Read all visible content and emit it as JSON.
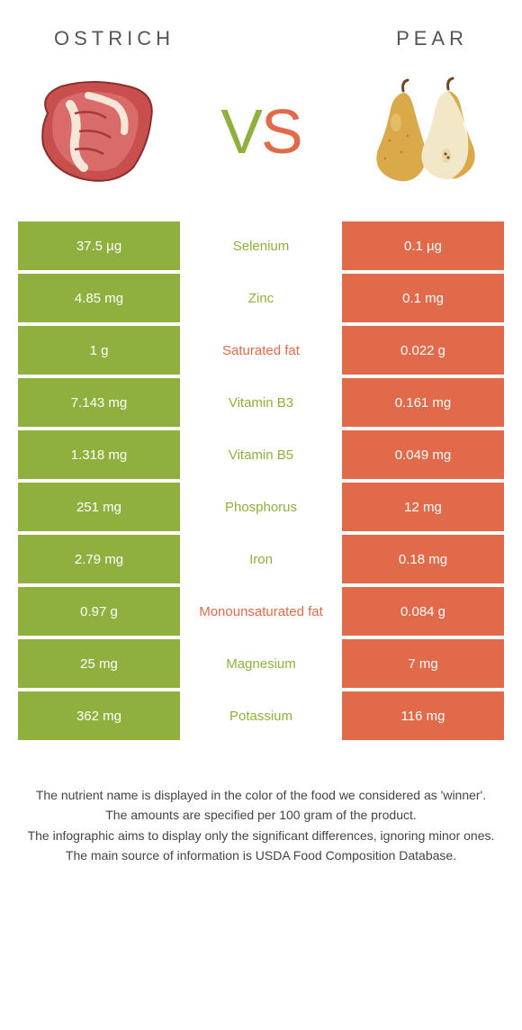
{
  "header": {
    "left": "Ostrich",
    "right": "Pear"
  },
  "vs": {
    "v": "V",
    "s": "S"
  },
  "colors": {
    "green": "#8fb03e",
    "orange": "#e06a4a"
  },
  "rows": [
    {
      "left": "37.5 µg",
      "label": "Selenium",
      "right": "0.1 µg",
      "winner": "green"
    },
    {
      "left": "4.85 mg",
      "label": "Zinc",
      "right": "0.1 mg",
      "winner": "green"
    },
    {
      "left": "1 g",
      "label": "Saturated fat",
      "right": "0.022 g",
      "winner": "orange"
    },
    {
      "left": "7.143 mg",
      "label": "Vitamin B3",
      "right": "0.161 mg",
      "winner": "green"
    },
    {
      "left": "1.318 mg",
      "label": "Vitamin B5",
      "right": "0.049 mg",
      "winner": "green"
    },
    {
      "left": "251 mg",
      "label": "Phosphorus",
      "right": "12 mg",
      "winner": "green"
    },
    {
      "left": "2.79 mg",
      "label": "Iron",
      "right": "0.18 mg",
      "winner": "green"
    },
    {
      "left": "0.97 g",
      "label": "Monounsaturated fat",
      "right": "0.084 g",
      "winner": "orange"
    },
    {
      "left": "25 mg",
      "label": "Magnesium",
      "right": "7 mg",
      "winner": "green"
    },
    {
      "left": "362 mg",
      "label": "Potassium",
      "right": "116 mg",
      "winner": "green"
    }
  ],
  "footnote": {
    "l1": "The nutrient name is displayed in the color of the food we considered as 'winner'.",
    "l2": "The amounts are specified per 100 gram of the product.",
    "l3": "The infographic aims to display only the significant differences, ignoring minor ones.",
    "l4": "The main source of information is USDA Food Composition Database."
  }
}
